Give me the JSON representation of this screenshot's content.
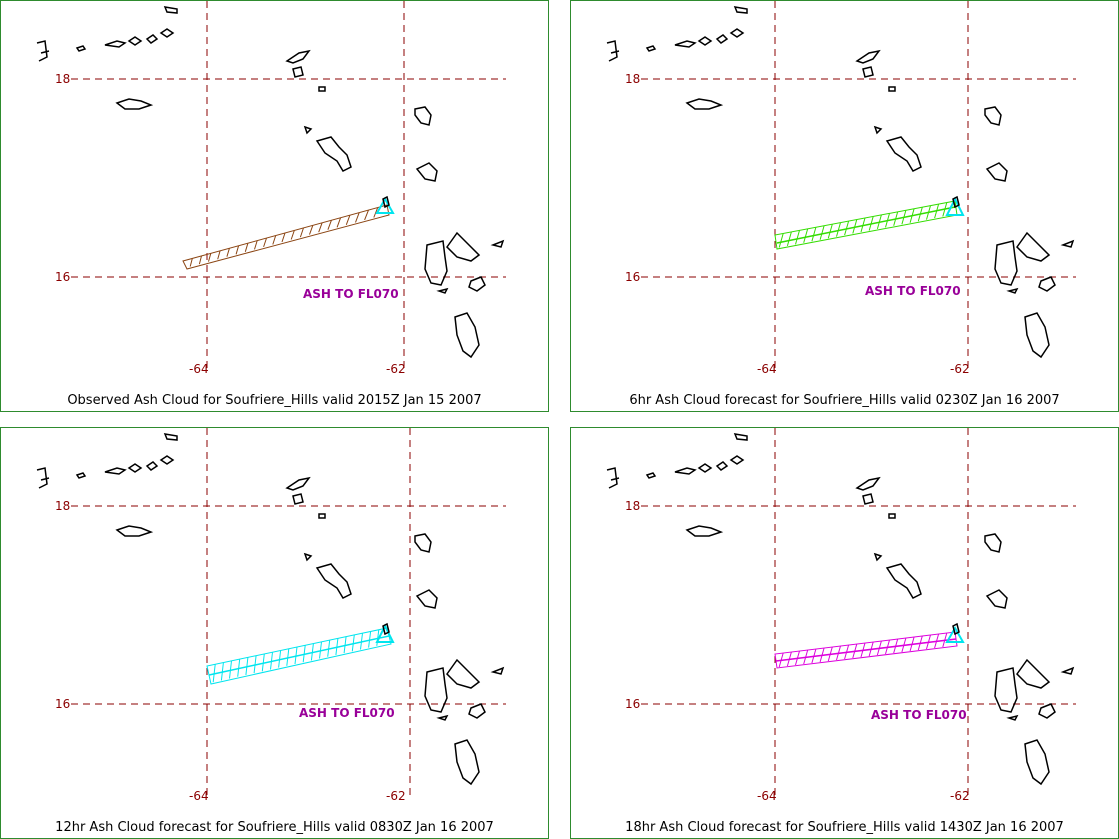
{
  "grid_labels": {
    "lat_18": "18",
    "lat_16": "16",
    "lon_64": "-64",
    "lon_62": "-62"
  },
  "panels": [
    {
      "caption": "Observed Ash Cloud for Soufriere_Hills valid 2015Z Jan 15 2007",
      "ash_label": "ASH TO FL070",
      "plume_color": "#8b4513",
      "vent_color": "#00e5ee"
    },
    {
      "caption": "6hr Ash Cloud forecast for Soufriere_Hills valid 0230Z Jan 16 2007",
      "ash_label": "ASH TO FL070",
      "plume_color": "#33dd00",
      "vent_color": "#00e5ee"
    },
    {
      "caption": "12hr Ash Cloud forecast for Soufriere_Hills valid 0830Z Jan 16 2007",
      "ash_label": "ASH TO FL070",
      "plume_color": "#00e5ee",
      "vent_color": "#00e5ee"
    },
    {
      "caption": "18hr Ash Cloud forecast for Soufriere_Hills valid 1430Z Jan 16 2007",
      "ash_label": "ASH TO FL070",
      "plume_color": "#dd00dd",
      "vent_color": "#00e5ee"
    }
  ]
}
